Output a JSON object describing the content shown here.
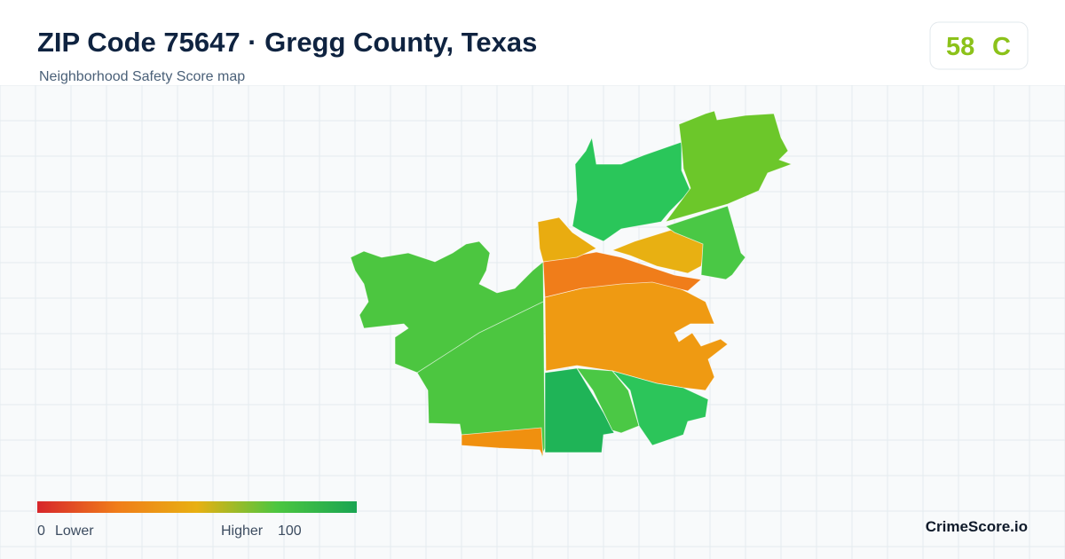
{
  "header": {
    "title": "ZIP Code 75647 · Gregg County, Texas",
    "subtitle": "Neighborhood Safety Score map"
  },
  "score": {
    "value": 58,
    "grade": "C"
  },
  "legend": {
    "min": 0,
    "min_label": "Lower",
    "max_label": "Higher",
    "max": 100
  },
  "brand": "CrimeScore.io"
}
